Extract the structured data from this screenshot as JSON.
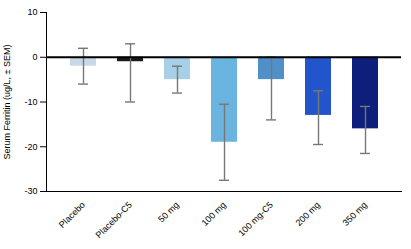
{
  "chart_data": {
    "type": "bar",
    "categories": [
      "Placebo",
      "Placebo-C5",
      "50 mg",
      "100 mg",
      "100 mg-C5",
      "200 mg",
      "350 mg"
    ],
    "values": [
      -2.0,
      -1.0,
      -5.0,
      -19.0,
      -5.0,
      -13.0,
      -16.0
    ],
    "errors_up": [
      4.0,
      4.0,
      3.0,
      8.5,
      5.0,
      5.5,
      5.0
    ],
    "errors_down": [
      4.0,
      9.0,
      3.0,
      8.5,
      9.0,
      6.5,
      5.5
    ],
    "colors": [
      "#c8d8e8",
      "#1a1a1a",
      "#a8cfe8",
      "#6ab5e0",
      "#5090c8",
      "#2255cc",
      "#0d1f7a"
    ],
    "ylabel": "Serum Ferritin (ug/L, ± SEM)",
    "ylim": [
      -30,
      10
    ],
    "yticks": [
      -30,
      -20,
      -10,
      0,
      10
    ]
  }
}
